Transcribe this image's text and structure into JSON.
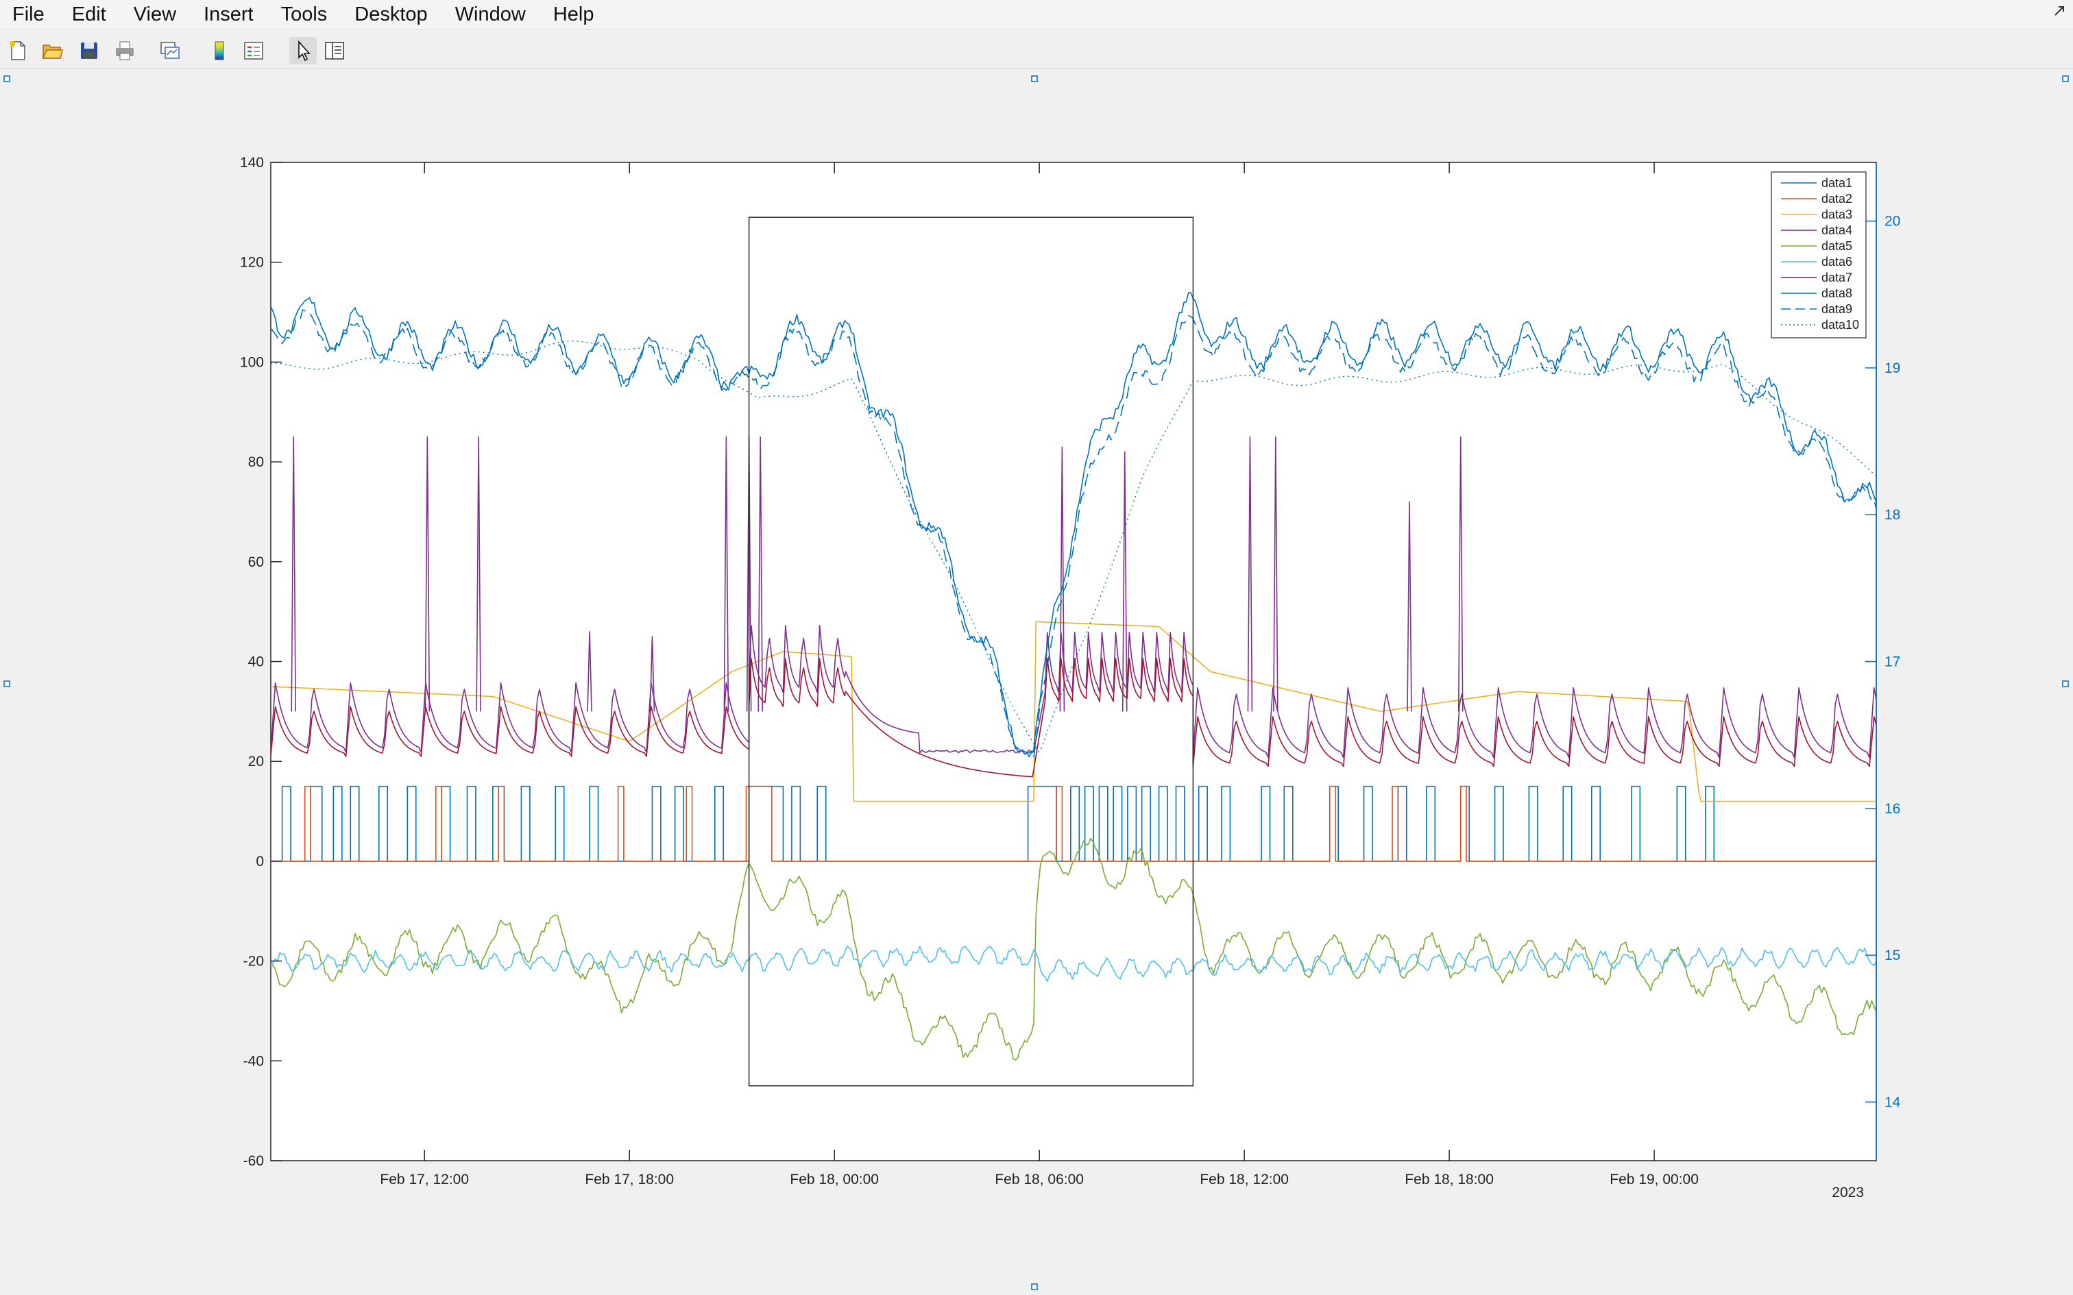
{
  "menu": [
    "File",
    "Edit",
    "View",
    "Insert",
    "Tools",
    "Desktop",
    "Window",
    "Help"
  ],
  "toolbar": {
    "buttons": [
      "new-figure",
      "open-file",
      "save-figure",
      "print-figure",
      "link-plot",
      "insert-colorbar",
      "insert-legend",
      "edit-plot",
      "open-property-inspector"
    ]
  },
  "colors": {
    "data1": "#0072bd",
    "data2": "#d95319",
    "data3": "#edb120",
    "data4": "#7e2f8e",
    "data5": "#77ac30",
    "data6": "#4dbeee",
    "data7": "#a2142f",
    "data8": "#0072bd",
    "data9": "#0072bd",
    "data10": "#0072bd"
  },
  "chart_data": {
    "type": "line",
    "x_axis_type": "datetime",
    "xlim": [
      "2023-02-17 07:30",
      "2023-02-19 06:30"
    ],
    "xticks": [
      "Feb 17, 12:00",
      "Feb 17, 18:00",
      "Feb 18, 00:00",
      "Feb 18, 06:00",
      "Feb 18, 12:00",
      "Feb 18, 18:00",
      "Feb 19, 00:00"
    ],
    "x_secondary_label": "2023",
    "ylim_left": [
      -60,
      140
    ],
    "yticks_left": [
      -60,
      -40,
      -20,
      0,
      20,
      40,
      60,
      80,
      100,
      120,
      140
    ],
    "ylim_right": [
      13.6,
      20.4
    ],
    "yticks_right": [
      14,
      15,
      16,
      17,
      18,
      19,
      20
    ],
    "legend_position": "top-right",
    "grid": false,
    "series": [
      {
        "name": "data1",
        "axis": "left",
        "style": "solid",
        "shape": "pulse",
        "low": 0,
        "high": 15,
        "pulses": [
          [
            "2023-02-17 07:50",
            "2023-02-17 08:05"
          ],
          [
            "2023-02-17 08:40",
            "2023-02-17 09:00"
          ],
          [
            "2023-02-17 09:20",
            "2023-02-17 09:35"
          ],
          [
            "2023-02-17 09:50",
            "2023-02-17 10:05"
          ],
          [
            "2023-02-17 10:40",
            "2023-02-17 10:55"
          ],
          [
            "2023-02-17 11:30",
            "2023-02-17 11:45"
          ],
          [
            "2023-02-17 12:30",
            "2023-02-17 12:45"
          ],
          [
            "2023-02-17 13:15",
            "2023-02-17 13:30"
          ],
          [
            "2023-02-17 14:00",
            "2023-02-17 14:20"
          ],
          [
            "2023-02-17 14:50",
            "2023-02-17 15:05"
          ],
          [
            "2023-02-17 15:50",
            "2023-02-17 16:05"
          ],
          [
            "2023-02-17 16:50",
            "2023-02-17 17:05"
          ],
          [
            "2023-02-17 18:40",
            "2023-02-17 18:55"
          ],
          [
            "2023-02-17 19:20",
            "2023-02-17 19:35"
          ],
          [
            "2023-02-17 20:30",
            "2023-02-17 20:45"
          ],
          [
            "2023-02-17 21:30",
            "2023-02-17 22:30"
          ],
          [
            "2023-02-17 22:45",
            "2023-02-17 23:00"
          ],
          [
            "2023-02-17 23:30",
            "2023-02-17 23:45"
          ],
          [
            "2023-02-18 05:40",
            "2023-02-18 06:30"
          ],
          [
            "2023-02-18 06:55",
            "2023-02-18 07:10"
          ],
          [
            "2023-02-18 07:20",
            "2023-02-18 07:35"
          ],
          [
            "2023-02-18 07:45",
            "2023-02-18 08:00"
          ],
          [
            "2023-02-18 08:10",
            "2023-02-18 08:25"
          ],
          [
            "2023-02-18 08:35",
            "2023-02-18 08:50"
          ],
          [
            "2023-02-18 09:00",
            "2023-02-18 09:15"
          ],
          [
            "2023-02-18 09:30",
            "2023-02-18 09:45"
          ],
          [
            "2023-02-18 10:00",
            "2023-02-18 10:15"
          ],
          [
            "2023-02-18 10:40",
            "2023-02-18 10:55"
          ],
          [
            "2023-02-18 11:20",
            "2023-02-18 11:35"
          ],
          [
            "2023-02-18 12:30",
            "2023-02-18 12:45"
          ],
          [
            "2023-02-18 13:10",
            "2023-02-18 13:25"
          ],
          [
            "2023-02-18 14:30",
            "2023-02-18 14:45"
          ],
          [
            "2023-02-18 15:30",
            "2023-02-18 15:45"
          ],
          [
            "2023-02-18 16:30",
            "2023-02-18 16:45"
          ],
          [
            "2023-02-18 17:20",
            "2023-02-18 17:35"
          ],
          [
            "2023-02-18 18:20",
            "2023-02-18 18:35"
          ],
          [
            "2023-02-18 19:20",
            "2023-02-18 19:35"
          ],
          [
            "2023-02-18 20:20",
            "2023-02-18 20:35"
          ],
          [
            "2023-02-18 21:20",
            "2023-02-18 21:35"
          ],
          [
            "2023-02-18 22:10",
            "2023-02-18 22:25"
          ],
          [
            "2023-02-18 23:20",
            "2023-02-18 23:35"
          ],
          [
            "2023-02-19 00:40",
            "2023-02-19 00:55"
          ],
          [
            "2023-02-19 01:30",
            "2023-02-19 01:45"
          ]
        ]
      },
      {
        "name": "data2",
        "axis": "left",
        "style": "solid",
        "shape": "pulse",
        "low": 0,
        "high": 15,
        "pulses": [
          [
            "2023-02-17 08:30",
            "2023-02-17 08:40"
          ],
          [
            "2023-02-17 12:20",
            "2023-02-17 12:30"
          ],
          [
            "2023-02-17 14:10",
            "2023-02-17 14:20"
          ],
          [
            "2023-02-17 17:40",
            "2023-02-17 17:50"
          ],
          [
            "2023-02-17 19:40",
            "2023-02-17 19:50"
          ],
          [
            "2023-02-17 21:25",
            "2023-02-17 22:10"
          ],
          [
            "2023-02-18 06:30",
            "2023-02-18 06:40"
          ],
          [
            "2023-02-18 14:30",
            "2023-02-18 14:40"
          ],
          [
            "2023-02-18 16:20",
            "2023-02-18 16:30"
          ],
          [
            "2023-02-18 18:20",
            "2023-02-18 18:30"
          ]
        ]
      },
      {
        "name": "data3",
        "axis": "left",
        "style": "solid",
        "shape": "ramp",
        "points": [
          [
            "2023-02-17 07:30",
            35
          ],
          [
            "2023-02-17 14:00",
            33
          ],
          [
            "2023-02-17 18:00",
            24
          ],
          [
            "2023-02-17 21:00",
            38
          ],
          [
            "2023-02-17 22:30",
            42
          ],
          [
            "2023-02-18 00:30",
            41
          ],
          [
            "2023-02-18 00:31",
            12
          ],
          [
            "2023-02-18 05:50",
            12
          ],
          [
            "2023-02-18 05:51",
            48
          ],
          [
            "2023-02-18 09:30",
            47
          ],
          [
            "2023-02-18 11:00",
            38
          ],
          [
            "2023-02-18 16:00",
            30
          ],
          [
            "2023-02-18 20:00",
            34
          ],
          [
            "2023-02-19 01:00",
            32
          ],
          [
            "2023-02-19 01:20",
            12
          ],
          [
            "2023-02-19 06:30",
            12
          ]
        ]
      },
      {
        "name": "data4",
        "axis": "left",
        "style": "solid",
        "shape": "sawtooth",
        "segments": [
          {
            "start": "2023-02-17 07:30",
            "end": "2023-02-17 21:30",
            "base": 26,
            "amp": 14,
            "period_h": 1.1
          },
          {
            "start": "2023-02-17 21:30",
            "end": "2023-02-18 00:20",
            "base": 38,
            "amp": 14,
            "period_h": 0.5
          },
          {
            "start": "2023-02-18 00:20",
            "end": "2023-02-18 02:30",
            "decay_from": 38,
            "decay_to": 25
          },
          {
            "start": "2023-02-18 02:30",
            "end": "2023-02-18 05:50",
            "flat": 22
          },
          {
            "start": "2023-02-18 06:10",
            "end": "2023-02-18 10:30",
            "base": 38,
            "amp": 14,
            "period_h": 0.4
          },
          {
            "start": "2023-02-18 10:30",
            "end": "2023-02-19 06:30",
            "base": 25,
            "amp": 14,
            "period_h": 1.1
          }
        ],
        "spikes": [
          [
            "2023-02-17 08:10",
            85
          ],
          [
            "2023-02-17 12:05",
            85
          ],
          [
            "2023-02-17 13:35",
            85
          ],
          [
            "2023-02-17 16:50",
            46
          ],
          [
            "2023-02-17 18:40",
            45
          ],
          [
            "2023-02-17 20:50",
            85
          ],
          [
            "2023-02-17 21:30",
            85
          ],
          [
            "2023-02-17 21:50",
            85
          ],
          [
            "2023-02-18 06:40",
            83
          ],
          [
            "2023-02-18 08:30",
            82
          ],
          [
            "2023-02-18 12:10",
            85
          ],
          [
            "2023-02-18 12:55",
            85
          ],
          [
            "2023-02-18 16:50",
            72
          ],
          [
            "2023-02-18 18:20",
            85
          ]
        ]
      },
      {
        "name": "data5",
        "axis": "left",
        "style": "solid",
        "shape": "wave",
        "points": [
          [
            "2023-02-17 07:30",
            -21
          ],
          [
            "2023-02-17 16:00",
            -15
          ],
          [
            "2023-02-17 17:30",
            -27
          ],
          [
            "2023-02-17 21:00",
            -15
          ],
          [
            "2023-02-17 21:30",
            -5
          ],
          [
            "2023-02-18 00:20",
            -10
          ],
          [
            "2023-02-18 00:40",
            -20
          ],
          [
            "2023-02-18 02:30",
            -33
          ],
          [
            "2023-02-18 03:00",
            -35
          ],
          [
            "2023-02-18 05:50",
            -35
          ],
          [
            "2023-02-18 05:51",
            -19
          ],
          [
            "2023-02-18 06:00",
            -5
          ],
          [
            "2023-02-18 06:20",
            2
          ],
          [
            "2023-02-18 09:30",
            -3
          ],
          [
            "2023-02-18 10:30",
            -10
          ],
          [
            "2023-02-18 11:00",
            -18
          ],
          [
            "2023-02-18 22:00",
            -20
          ],
          [
            "2023-02-19 01:00",
            -22
          ],
          [
            "2023-02-19 06:30",
            -33
          ]
        ],
        "wiggle_amp": 4
      },
      {
        "name": "data6",
        "axis": "left",
        "style": "solid",
        "shape": "noise",
        "points": [
          [
            "2023-02-17 07:30",
            -20
          ],
          [
            "2023-02-17 22:00",
            -20
          ],
          [
            "2023-02-18 00:30",
            -19
          ],
          [
            "2023-02-18 05:50",
            -19
          ],
          [
            "2023-02-18 06:00",
            -22
          ],
          [
            "2023-02-18 10:30",
            -21
          ],
          [
            "2023-02-19 06:30",
            -19
          ]
        ],
        "wiggle_amp": 1.5
      },
      {
        "name": "data7",
        "axis": "left",
        "style": "solid",
        "shape": "sawtooth",
        "segments": [
          {
            "start": "2023-02-17 07:30",
            "end": "2023-02-17 21:30",
            "base": 24,
            "amp": 10,
            "period_h": 1.1
          },
          {
            "start": "2023-02-17 21:30",
            "end": "2023-02-18 00:20",
            "base": 34,
            "amp": 10,
            "period_h": 0.5
          },
          {
            "start": "2023-02-18 00:20",
            "end": "2023-02-18 05:50",
            "decay_from": 34,
            "decay_to": 16
          },
          {
            "start": "2023-02-18 06:10",
            "end": "2023-02-18 10:30",
            "base": 35,
            "amp": 10,
            "period_h": 0.4
          },
          {
            "start": "2023-02-18 10:30",
            "end": "2023-02-19 06:30",
            "base": 22,
            "amp": 10,
            "period_h": 1.1
          }
        ],
        "spikes": []
      },
      {
        "name": "data8",
        "axis": "left",
        "style": "solid",
        "shape": "wave",
        "points": [
          [
            "2023-02-17 07:30",
            110
          ],
          [
            "2023-02-17 12:00",
            103
          ],
          [
            "2023-02-17 15:00",
            104
          ],
          [
            "2023-02-17 18:00",
            100
          ],
          [
            "2023-02-17 20:30",
            101
          ],
          [
            "2023-02-17 21:30",
            94
          ],
          [
            "2023-02-17 22:30",
            105
          ],
          [
            "2023-02-18 00:30",
            104
          ],
          [
            "2023-02-18 05:50",
            19
          ],
          [
            "2023-02-18 06:30",
            55
          ],
          [
            "2023-02-18 08:00",
            92
          ],
          [
            "2023-02-18 10:30",
            110
          ],
          [
            "2023-02-18 12:00",
            103
          ],
          [
            "2023-02-18 18:00",
            104
          ],
          [
            "2023-02-19 02:00",
            102
          ],
          [
            "2023-02-19 06:30",
            70
          ]
        ],
        "wiggle_amp": 4
      },
      {
        "name": "data9",
        "axis": "left",
        "style": "dashed",
        "shape": "wave",
        "points": [
          [
            "2023-02-17 07:30",
            108
          ],
          [
            "2023-02-17 12:00",
            102
          ],
          [
            "2023-02-17 15:00",
            103
          ],
          [
            "2023-02-17 18:00",
            99
          ],
          [
            "2023-02-17 20:30",
            100
          ],
          [
            "2023-02-17 21:30",
            93
          ],
          [
            "2023-02-17 22:30",
            103
          ],
          [
            "2023-02-18 00:30",
            102
          ],
          [
            "2023-02-18 05:50",
            18
          ],
          [
            "2023-02-18 06:30",
            52
          ],
          [
            "2023-02-18 08:00",
            88
          ],
          [
            "2023-02-18 10:30",
            107
          ],
          [
            "2023-02-18 12:00",
            101
          ],
          [
            "2023-02-18 18:00",
            102
          ],
          [
            "2023-02-19 02:00",
            100
          ],
          [
            "2023-02-19 06:30",
            69
          ]
        ],
        "wiggle_amp": 3.5
      },
      {
        "name": "data10",
        "axis": "left",
        "style": "dotted",
        "shape": "smooth",
        "points": [
          [
            "2023-02-17 07:30",
            99
          ],
          [
            "2023-02-17 08:00",
            99
          ],
          [
            "2023-02-17 13:00",
            101
          ],
          [
            "2023-02-17 17:00",
            104
          ],
          [
            "2023-02-17 20:00",
            101
          ],
          [
            "2023-02-17 21:45",
            92
          ],
          [
            "2023-02-18 00:30",
            96
          ],
          [
            "2023-02-18 06:00",
            21
          ],
          [
            "2023-02-18 09:00",
            76
          ],
          [
            "2023-02-18 10:30",
            97
          ],
          [
            "2023-02-18 14:00",
            96
          ],
          [
            "2023-02-18 20:00",
            98
          ],
          [
            "2023-02-19 02:00",
            99
          ],
          [
            "2023-02-19 06:30",
            78
          ]
        ]
      }
    ],
    "annotation_rectangle": {
      "x_start": "2023-02-17 21:30",
      "x_end": "2023-02-18 10:30",
      "y_bottom": -45,
      "y_top": 129
    }
  }
}
